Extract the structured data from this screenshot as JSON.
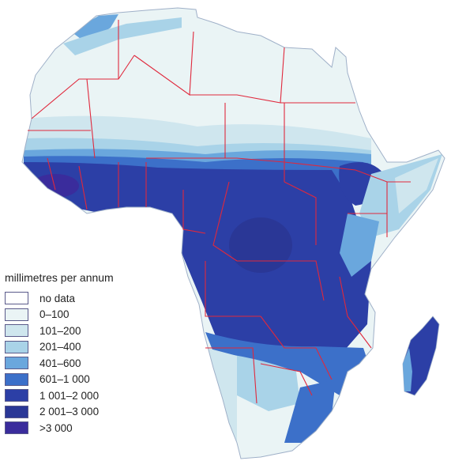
{
  "legend": {
    "title": "millimetres per annum",
    "classes": [
      {
        "label": "no data",
        "color": "#ffffff"
      },
      {
        "label": "0–100",
        "color": "#eaf4f5"
      },
      {
        "label": "101–200",
        "color": "#cfe6ee"
      },
      {
        "label": "201–400",
        "color": "#a9d3e8"
      },
      {
        "label": "401–600",
        "color": "#6aa7dd"
      },
      {
        "label": "601–1 000",
        "color": "#3c70c9"
      },
      {
        "label": "1 001–2 000",
        "color": "#2c3fa6"
      },
      {
        "label": "2 001–3 000",
        "color": "#2a3796"
      },
      {
        "label": ">3 000",
        "color": "#3a2c9c"
      }
    ]
  },
  "colors": {
    "borders": "#e0283c",
    "coast": "#9fb0c8"
  }
}
